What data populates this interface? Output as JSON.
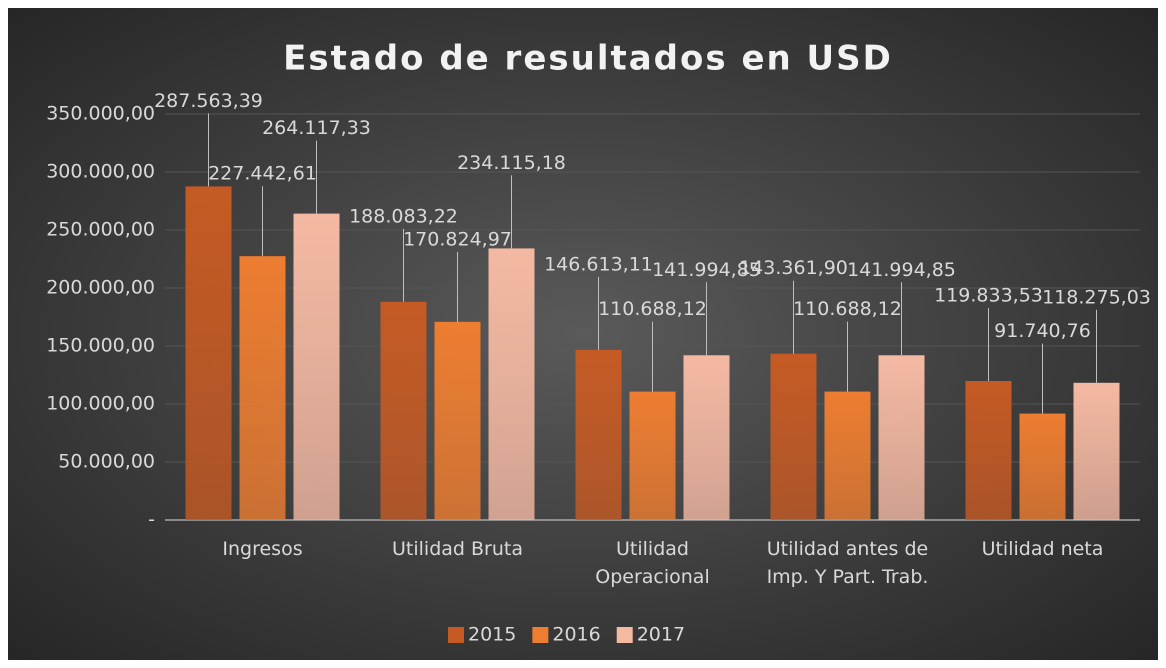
{
  "chart_data": {
    "type": "bar",
    "title": "Estado de resultados en USD",
    "categories": [
      "Ingresos",
      "Utilidad Bruta",
      "Utilidad Operacional",
      "Utilidad antes de Imp. Y Part. Trab.",
      "Utilidad neta"
    ],
    "series": [
      {
        "name": "2015",
        "color": "#c55a24",
        "values": [
          287563.39,
          188083.22,
          146613.11,
          143361.9,
          119833.53
        ],
        "value_labels": [
          "287.563,39",
          "188.083,22",
          "146.613,11",
          "143.361,90",
          "119.833,53"
        ]
      },
      {
        "name": "2016",
        "color": "#ed7d31",
        "values": [
          227442.61,
          170824.97,
          110688.12,
          110688.12,
          91740.76
        ],
        "value_labels": [
          "227.442,61",
          "170.824,97",
          "110.688,12",
          "110.688,12",
          "91.740,76"
        ]
      },
      {
        "name": "2017",
        "color": "#f4b9a3",
        "values": [
          264117.33,
          234115.18,
          141994.85,
          141994.85,
          118275.03
        ],
        "value_labels": [
          "264.117,33",
          "234.115,18",
          "141.994,85",
          "141.994,85",
          "118.275,03"
        ]
      }
    ],
    "ylim": [
      0,
      350000
    ],
    "yticks": [
      {
        "value": 0,
        "label": "-"
      },
      {
        "value": 50000,
        "label": "50.000,00"
      },
      {
        "value": 100000,
        "label": "100.000,00"
      },
      {
        "value": 150000,
        "label": "150.000,00"
      },
      {
        "value": 200000,
        "label": "200.000,00"
      },
      {
        "value": 250000,
        "label": "250.000,00"
      },
      {
        "value": 300000,
        "label": "300.000,00"
      },
      {
        "value": 350000,
        "label": "350.000,00"
      }
    ],
    "grid": true,
    "legend": "bottom"
  }
}
